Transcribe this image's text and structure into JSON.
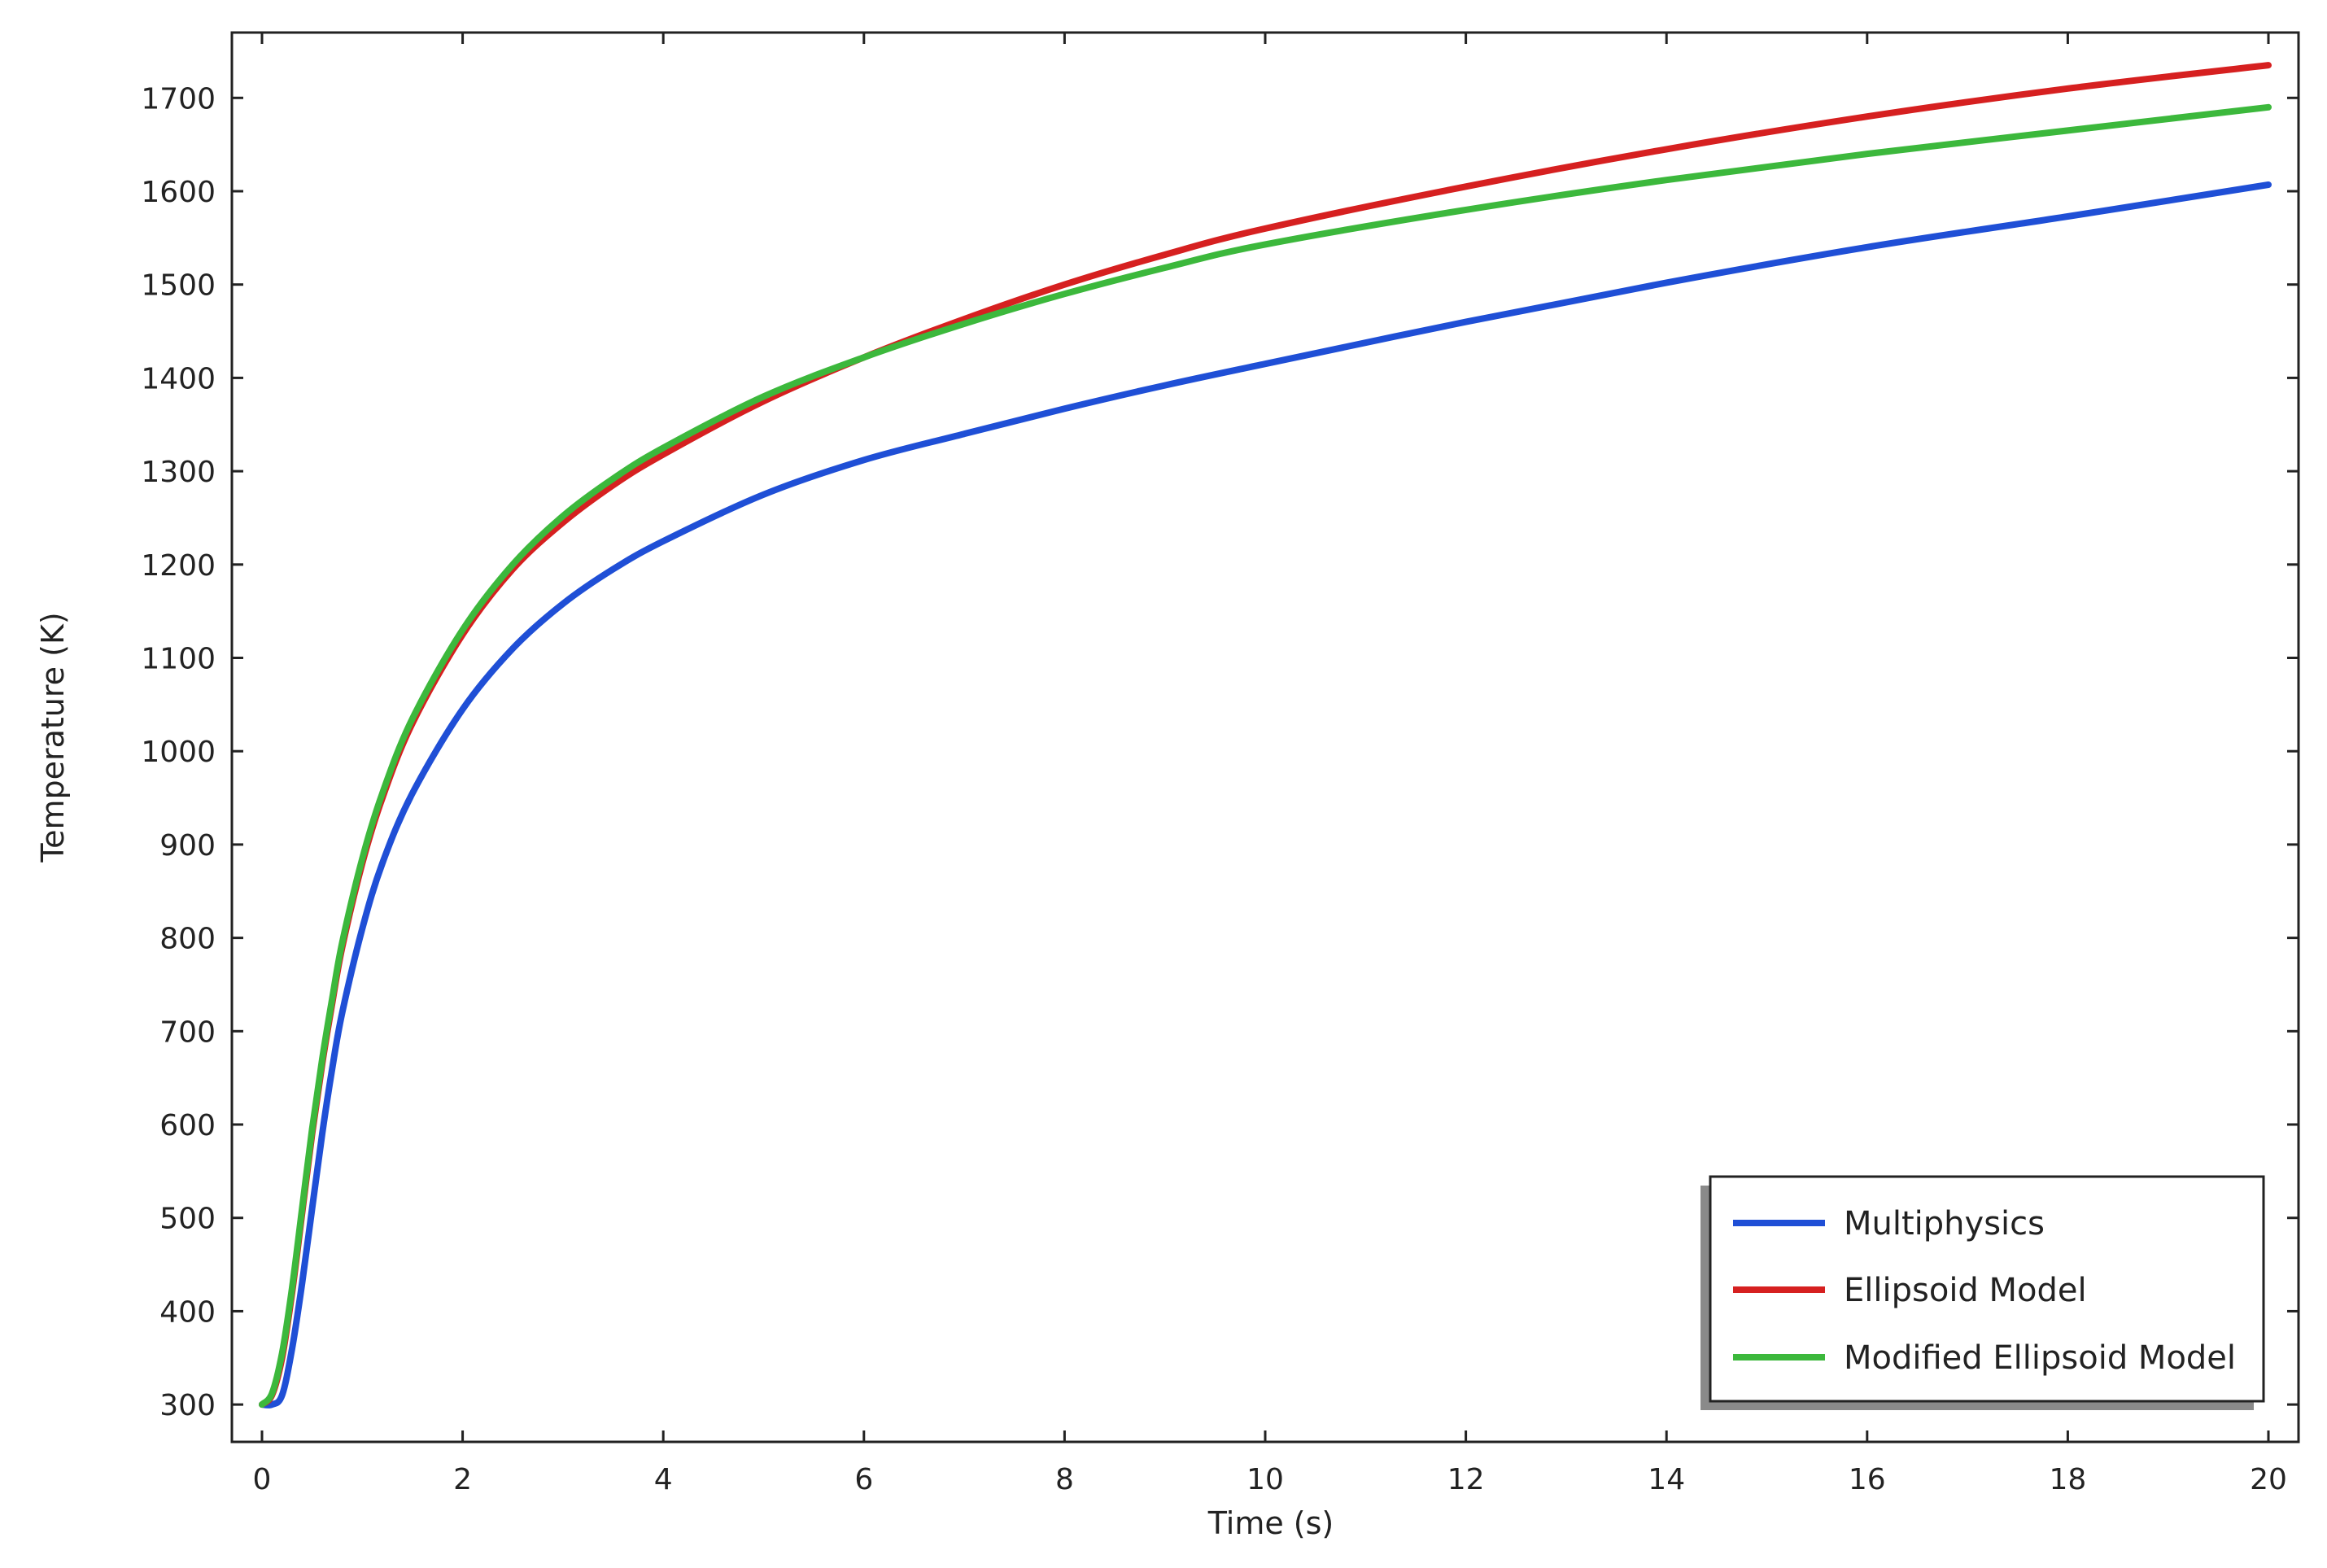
{
  "chart_data": {
    "type": "line",
    "xlabel": "Time (s)",
    "ylabel": "Temperature (K)",
    "xlim": [
      -0.3,
      20.3
    ],
    "ylim": [
      260,
      1770
    ],
    "xticks": [
      0,
      2,
      4,
      6,
      8,
      10,
      12,
      14,
      16,
      18,
      20
    ],
    "yticks": [
      300,
      400,
      500,
      600,
      700,
      800,
      900,
      1000,
      1100,
      1200,
      1300,
      1400,
      1500,
      1600,
      1700
    ],
    "grid": false,
    "legend_position": "bottom-right",
    "series": [
      {
        "name": "Multiphysics",
        "color": "#1f4fd6",
        "x": [
          0,
          0.1,
          0.2,
          0.3,
          0.4,
          0.5,
          0.6,
          0.7,
          0.8,
          1.0,
          1.2,
          1.5,
          2.0,
          2.5,
          3.0,
          3.5,
          4.0,
          5.0,
          6.0,
          7.0,
          8.0,
          9.0,
          10.0,
          12.0,
          14.0,
          16.0,
          18.0,
          20.0
        ],
        "y": [
          300,
          300,
          310,
          360,
          430,
          510,
          590,
          660,
          720,
          810,
          880,
          955,
          1045,
          1110,
          1158,
          1195,
          1225,
          1275,
          1312,
          1340,
          1367,
          1392,
          1415,
          1460,
          1502,
          1540,
          1573,
          1607
        ]
      },
      {
        "name": "Ellipsoid Model",
        "color": "#d62020",
        "x": [
          0,
          0.1,
          0.2,
          0.3,
          0.4,
          0.5,
          0.6,
          0.7,
          0.8,
          1.0,
          1.2,
          1.5,
          2.0,
          2.5,
          3.0,
          3.5,
          4.0,
          5.0,
          6.0,
          7.0,
          8.0,
          9.0,
          10.0,
          12.0,
          14.0,
          16.0,
          18.0,
          20.0
        ],
        "y": [
          300,
          310,
          350,
          420,
          505,
          590,
          665,
          730,
          790,
          880,
          950,
          1030,
          1125,
          1195,
          1245,
          1285,
          1318,
          1375,
          1422,
          1463,
          1500,
          1532,
          1560,
          1605,
          1645,
          1680,
          1710,
          1735
        ]
      },
      {
        "name": "Modified Ellipsoid Model",
        "color": "#3cb83c",
        "x": [
          0,
          0.1,
          0.2,
          0.3,
          0.4,
          0.5,
          0.6,
          0.7,
          0.8,
          1.0,
          1.2,
          1.5,
          2.0,
          2.5,
          3.0,
          3.5,
          4.0,
          5.0,
          6.0,
          7.0,
          8.0,
          9.0,
          10.0,
          12.0,
          14.0,
          16.0,
          18.0,
          20.0
        ],
        "y": [
          300,
          312,
          355,
          425,
          510,
          595,
          670,
          735,
          795,
          885,
          955,
          1035,
          1130,
          1200,
          1252,
          1292,
          1325,
          1380,
          1422,
          1458,
          1490,
          1518,
          1543,
          1580,
          1612,
          1640,
          1665,
          1690
        ]
      }
    ]
  }
}
